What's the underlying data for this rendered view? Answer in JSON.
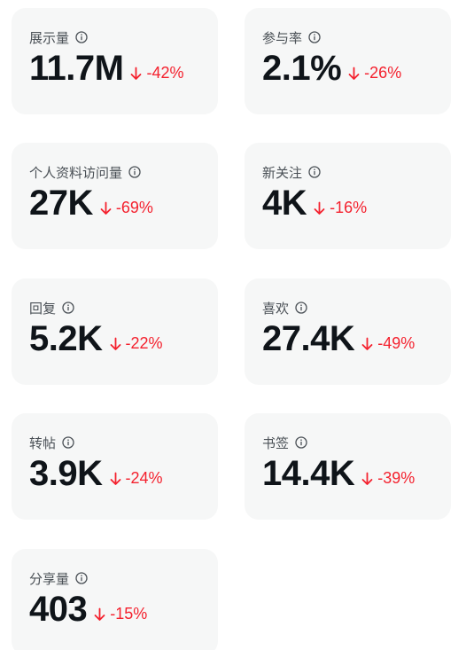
{
  "metrics": [
    {
      "label": "展示量",
      "value": "11.7M",
      "change": "-42%",
      "icon": "info-icon",
      "trend": "down"
    },
    {
      "label": "参与率",
      "value": "2.1%",
      "change": "-26%",
      "icon": "info-icon",
      "trend": "down"
    },
    {
      "label": "个人资料访问量",
      "value": "27K",
      "change": "-69%",
      "icon": "info-icon",
      "trend": "down"
    },
    {
      "label": "新关注",
      "value": "4K",
      "change": "-16%",
      "icon": "info-icon",
      "trend": "down"
    },
    {
      "label": "回复",
      "value": "5.2K",
      "change": "-22%",
      "icon": "info-icon",
      "trend": "down"
    },
    {
      "label": "喜欢",
      "value": "27.4K",
      "change": "-49%",
      "icon": "info-icon",
      "trend": "down"
    },
    {
      "label": "转帖",
      "value": "3.9K",
      "change": "-24%",
      "icon": "info-icon",
      "trend": "down"
    },
    {
      "label": "书签",
      "value": "14.4K",
      "change": "-39%",
      "icon": "info-icon",
      "trend": "down"
    },
    {
      "label": "分享量",
      "value": "403",
      "change": "-15%",
      "icon": "info-icon",
      "trend": "down"
    }
  ],
  "colors": {
    "card_background": "#f6f7f7",
    "value_text": "#0f1419",
    "label_text": "#4a5056",
    "negative_change": "#f4212e"
  }
}
